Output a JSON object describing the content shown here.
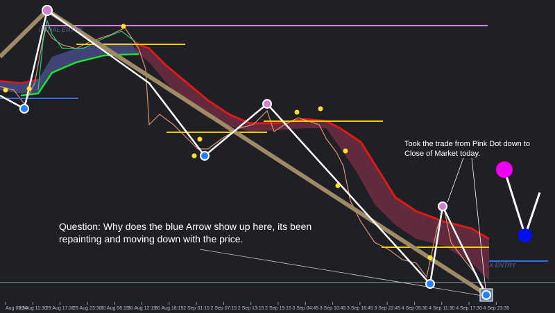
{
  "chart_labels": {
    "entry_left": "INITIAL ENTRY",
    "entry_right": "X ENTRY"
  },
  "x_axis": [
    "Aug 05:30",
    "29 Aug 11:30",
    "29 Aug 17:30",
    "29 Aug 23:30",
    "30 Aug 06:15",
    "30 Aug 12:15",
    "30 Aug 18:15",
    "2 Sep 01:15",
    "2 Sep 07:15",
    "2 Sep 13:15",
    "2 Sep 19:15",
    "3 Sep 04:45",
    "3 Sep 10:45",
    "3 Sep 16:45",
    "3 Sep 22:45",
    "4 Sep 05:30",
    "4 Sep 11:30",
    "4 Sep 17:30",
    "4 Sep 23:30"
  ],
  "annotations": {
    "trade_note": [
      "Took the trade from Pink Dot down to",
      "Close of Market today."
    ],
    "question": [
      "Question: Why does the blue Arrow show up here, its been",
      "repainting and moving down with the price."
    ]
  }
}
